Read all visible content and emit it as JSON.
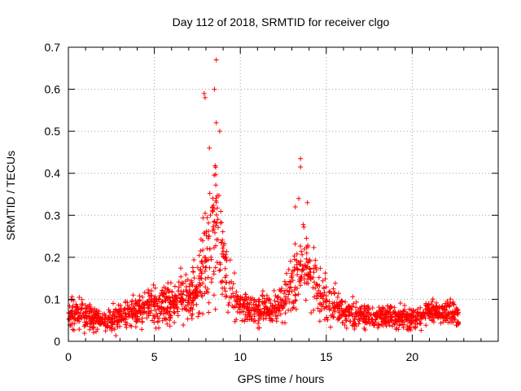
{
  "chart_data": {
    "type": "scatter",
    "title": "Day 112 of 2018, SRMTID for receiver clgo",
    "xlabel": "GPS time / hours",
    "ylabel": "SRMTID / TECUs",
    "xlim": [
      0,
      25
    ],
    "ylim": [
      0,
      0.7
    ],
    "xticks": [
      0,
      5,
      10,
      15,
      20
    ],
    "xtick_labels": [
      "0",
      "5",
      "10",
      "15",
      "20"
    ],
    "yticks": [
      0,
      0.1,
      0.2,
      0.3,
      0.4,
      0.5,
      0.6,
      0.7
    ],
    "ytick_labels": [
      "0",
      "0.1",
      "0.2",
      "0.3",
      "0.4",
      "0.5",
      "0.6",
      "0.7"
    ],
    "grid": true,
    "marker": "+",
    "series_color": "#ff0000",
    "envelope": {
      "hours": [
        0,
        1,
        2,
        3,
        4,
        5,
        6,
        7,
        7.6,
        8.0,
        8.4,
        8.7,
        9.0,
        9.5,
        10,
        11,
        12,
        12.6,
        13.1,
        13.6,
        14.1,
        14.6,
        15.2,
        16,
        17,
        18,
        19,
        20,
        21,
        22,
        22.7
      ],
      "typical": [
        0.07,
        0.06,
        0.05,
        0.06,
        0.07,
        0.09,
        0.09,
        0.11,
        0.13,
        0.2,
        0.28,
        0.3,
        0.2,
        0.11,
        0.08,
        0.07,
        0.08,
        0.1,
        0.14,
        0.19,
        0.17,
        0.12,
        0.09,
        0.07,
        0.06,
        0.06,
        0.06,
        0.05,
        0.07,
        0.07,
        0.06
      ],
      "spread": [
        0.03,
        0.03,
        0.025,
        0.03,
        0.03,
        0.04,
        0.04,
        0.05,
        0.07,
        0.12,
        0.15,
        0.14,
        0.1,
        0.05,
        0.03,
        0.03,
        0.03,
        0.05,
        0.07,
        0.08,
        0.07,
        0.05,
        0.04,
        0.03,
        0.025,
        0.025,
        0.025,
        0.025,
        0.025,
        0.025,
        0.03
      ]
    },
    "notable_points": [
      {
        "x": 8.6,
        "y": 0.67
      },
      {
        "x": 7.9,
        "y": 0.59
      },
      {
        "x": 7.95,
        "y": 0.58
      },
      {
        "x": 8.5,
        "y": 0.6
      },
      {
        "x": 8.6,
        "y": 0.52
      },
      {
        "x": 8.8,
        "y": 0.5
      },
      {
        "x": 8.2,
        "y": 0.46
      },
      {
        "x": 13.5,
        "y": 0.435
      },
      {
        "x": 13.5,
        "y": 0.415
      },
      {
        "x": 13.4,
        "y": 0.34
      },
      {
        "x": 13.9,
        "y": 0.33
      },
      {
        "x": 13.2,
        "y": 0.32
      }
    ],
    "point_count": 1800
  }
}
